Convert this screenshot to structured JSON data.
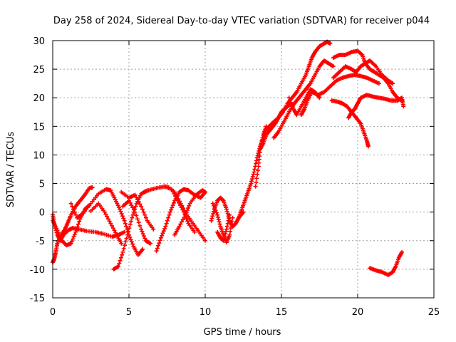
{
  "chart_data": {
    "type": "scatter",
    "title": "Day 258 of 2024, Sidereal Day-to-day VTEC variation (SDTVAR) for receiver p044",
    "xlabel": "GPS time / hours",
    "ylabel": "SDTVAR / TECUs",
    "xlim": [
      0,
      25
    ],
    "ylim": [
      -15,
      30
    ],
    "x_ticks": [
      "0",
      "5",
      "10",
      "15",
      "20",
      "25"
    ],
    "y_ticks": [
      "-15",
      "-10",
      "-5",
      "0",
      "5",
      "10",
      "15",
      "20",
      "25",
      "30"
    ],
    "grid": true,
    "marker": "plus",
    "color": "#ff0000",
    "series": [
      {
        "name": "s1",
        "points": [
          [
            0.0,
            -1.5
          ],
          [
            0.3,
            -3.2
          ],
          [
            0.6,
            -5.0
          ],
          [
            0.9,
            -5.8
          ],
          [
            1.2,
            -5.5
          ],
          [
            1.5,
            -3.5
          ],
          [
            1.8,
            -1.2
          ],
          [
            2.1,
            0.5
          ],
          [
            2.4,
            1.2
          ]
        ]
      },
      {
        "name": "s2",
        "points": [
          [
            0.0,
            -8.8
          ],
          [
            0.1,
            -8.2
          ],
          [
            0.2,
            -7.0
          ],
          [
            0.3,
            -5.5
          ],
          [
            0.5,
            -4.2
          ],
          [
            0.8,
            -3.0
          ],
          [
            1.0,
            -1.8
          ],
          [
            1.2,
            -0.5
          ],
          [
            1.5,
            1.0
          ],
          [
            1.8,
            2.0
          ],
          [
            2.1,
            3.0
          ],
          [
            2.4,
            4.2
          ],
          [
            2.6,
            4.3
          ]
        ]
      },
      {
        "name": "s3",
        "points": [
          [
            0.0,
            -0.4
          ],
          [
            0.1,
            -2.0
          ],
          [
            0.3,
            -4.0
          ],
          [
            0.5,
            -5.0
          ],
          [
            0.7,
            -4.0
          ],
          [
            1.0,
            -3.2
          ],
          [
            1.3,
            -2.8
          ],
          [
            1.7,
            -3.0
          ],
          [
            2.2,
            -3.3
          ],
          [
            2.8,
            -3.5
          ],
          [
            3.3,
            -3.8
          ],
          [
            3.9,
            -4.3
          ],
          [
            4.3,
            -4.0
          ],
          [
            4.7,
            -3.5
          ]
        ]
      },
      {
        "name": "s4",
        "points": [
          [
            1.2,
            1.5
          ],
          [
            1.6,
            -1.0
          ],
          [
            2.0,
            -0.2
          ],
          [
            2.5,
            1.5
          ],
          [
            3.0,
            3.2
          ],
          [
            3.5,
            4.0
          ],
          [
            3.8,
            3.8
          ],
          [
            4.1,
            2.2
          ],
          [
            4.4,
            0.5
          ],
          [
            4.7,
            -1.5
          ],
          [
            5.0,
            -4.0
          ],
          [
            5.3,
            -6.0
          ],
          [
            5.6,
            -7.5
          ],
          [
            5.9,
            -6.5
          ]
        ]
      },
      {
        "name": "s5",
        "points": [
          [
            2.5,
            0.2
          ],
          [
            3.0,
            1.5
          ],
          [
            3.4,
            0.0
          ],
          [
            3.8,
            -2.0
          ],
          [
            4.2,
            -4.0
          ],
          [
            4.5,
            -5.5
          ]
        ]
      },
      {
        "name": "s6",
        "points": [
          [
            4.0,
            -10.0
          ],
          [
            4.3,
            -9.5
          ],
          [
            4.6,
            -7.0
          ],
          [
            4.9,
            -4.0
          ],
          [
            5.2,
            -1.0
          ],
          [
            5.5,
            1.5
          ],
          [
            5.8,
            3.2
          ],
          [
            6.2,
            3.8
          ]
        ]
      },
      {
        "name": "s7",
        "points": [
          [
            4.6,
            1.0
          ],
          [
            5.0,
            2.0
          ],
          [
            5.4,
            0.0
          ],
          [
            5.8,
            -3.0
          ],
          [
            6.1,
            -5.0
          ],
          [
            6.4,
            -5.5
          ]
        ]
      },
      {
        "name": "s8",
        "points": [
          [
            4.5,
            3.5
          ],
          [
            5.0,
            2.5
          ],
          [
            5.4,
            3.0
          ],
          [
            5.8,
            1.0
          ],
          [
            6.2,
            -1.5
          ],
          [
            6.6,
            -3.0
          ]
        ]
      },
      {
        "name": "s9",
        "points": [
          [
            6.8,
            -6.8
          ],
          [
            7.1,
            -4.5
          ],
          [
            7.4,
            -2.5
          ],
          [
            7.7,
            0.0
          ],
          [
            8.0,
            2.0
          ],
          [
            8.3,
            3.5
          ],
          [
            8.6,
            4.0
          ],
          [
            8.9,
            3.8
          ],
          [
            9.3,
            3.0
          ],
          [
            9.7,
            2.5
          ],
          [
            10.0,
            3.5
          ]
        ]
      },
      {
        "name": "s10",
        "points": [
          [
            6.0,
            3.5
          ],
          [
            6.5,
            4.0
          ],
          [
            7.0,
            4.3
          ],
          [
            7.5,
            4.5
          ],
          [
            8.0,
            3.5
          ],
          [
            8.4,
            1.5
          ],
          [
            8.8,
            -0.5
          ],
          [
            9.2,
            -2.0
          ],
          [
            9.6,
            -3.5
          ],
          [
            10.0,
            -5.0
          ]
        ]
      },
      {
        "name": "s11",
        "points": [
          [
            7.3,
            4.5
          ],
          [
            7.8,
            4.0
          ],
          [
            8.2,
            2.0
          ],
          [
            8.6,
            0.0
          ],
          [
            8.9,
            -2.0
          ],
          [
            9.3,
            -3.5
          ]
        ]
      },
      {
        "name": "s12",
        "points": [
          [
            8.0,
            -4.0
          ],
          [
            8.3,
            -2.5
          ],
          [
            8.7,
            -0.5
          ],
          [
            9.0,
            1.5
          ],
          [
            9.4,
            3.0
          ],
          [
            9.8,
            3.8
          ],
          [
            10.0,
            3.5
          ]
        ]
      },
      {
        "name": "s13",
        "points": [
          [
            10.4,
            -1.5
          ],
          [
            10.6,
            0.5
          ],
          [
            10.8,
            2.0
          ],
          [
            11.0,
            2.5
          ],
          [
            11.2,
            2.0
          ],
          [
            11.4,
            0.5
          ],
          [
            11.6,
            -1.5
          ],
          [
            11.8,
            -2.5
          ],
          [
            12.0,
            -2.0
          ],
          [
            12.2,
            -1.0
          ],
          [
            12.5,
            0.0
          ]
        ]
      },
      {
        "name": "s14",
        "points": [
          [
            10.5,
            1.5
          ],
          [
            10.8,
            -0.5
          ],
          [
            11.0,
            -2.5
          ],
          [
            11.2,
            -4.0
          ],
          [
            11.4,
            -5.3
          ],
          [
            11.6,
            -4.0
          ],
          [
            11.8,
            -1.0
          ]
        ]
      },
      {
        "name": "s15",
        "points": [
          [
            10.8,
            -3.5
          ],
          [
            11.0,
            -4.5
          ],
          [
            11.2,
            -5.0
          ],
          [
            11.4,
            -3.0
          ],
          [
            11.6,
            -0.5
          ]
        ]
      },
      {
        "name": "s16",
        "points": [
          [
            12.2,
            -1.0
          ],
          [
            12.4,
            0.5
          ],
          [
            12.6,
            2.0
          ],
          [
            12.8,
            3.5
          ],
          [
            13.0,
            5.0
          ],
          [
            13.2,
            7.0
          ],
          [
            13.4,
            9.5
          ],
          [
            13.6,
            11.5
          ],
          [
            13.8,
            13.0
          ],
          [
            14.0,
            14.5
          ],
          [
            14.2,
            15.0
          ],
          [
            14.5,
            15.8
          ],
          [
            14.8,
            16.5
          ],
          [
            15.0,
            17.5
          ],
          [
            15.2,
            18.0
          ],
          [
            15.4,
            18.5
          ],
          [
            15.6,
            19.0
          ]
        ]
      },
      {
        "name": "s17",
        "points": [
          [
            13.3,
            4.5
          ],
          [
            13.5,
            8.0
          ],
          [
            13.6,
            11.0
          ],
          [
            13.8,
            13.5
          ],
          [
            14.0,
            15.0
          ]
        ]
      },
      {
        "name": "s18",
        "points": [
          [
            13.6,
            11.0
          ],
          [
            13.8,
            12.0
          ],
          [
            14.0,
            13.5
          ],
          [
            14.3,
            14.5
          ],
          [
            14.6,
            15.5
          ],
          [
            14.8,
            16.5
          ],
          [
            15.1,
            17.5
          ],
          [
            15.4,
            19.0
          ],
          [
            15.7,
            20.0
          ],
          [
            16.0,
            21.0
          ],
          [
            16.3,
            22.5
          ],
          [
            16.6,
            24.0
          ],
          [
            16.8,
            25.5
          ],
          [
            17.0,
            27.0
          ],
          [
            17.2,
            28.0
          ],
          [
            17.5,
            29.0
          ],
          [
            17.8,
            29.5
          ],
          [
            18.0,
            29.8
          ],
          [
            18.2,
            29.5
          ]
        ]
      },
      {
        "name": "s19",
        "points": [
          [
            14.5,
            13.0
          ],
          [
            14.8,
            14.0
          ],
          [
            15.1,
            15.5
          ],
          [
            15.4,
            17.0
          ],
          [
            15.7,
            18.5
          ],
          [
            16.0,
            19.5
          ],
          [
            16.3,
            20.5
          ],
          [
            16.6,
            21.5
          ],
          [
            16.9,
            22.5
          ],
          [
            17.2,
            24.0
          ],
          [
            17.5,
            25.5
          ],
          [
            17.8,
            26.5
          ],
          [
            18.1,
            26.0
          ],
          [
            18.4,
            25.5
          ]
        ]
      },
      {
        "name": "s20",
        "points": [
          [
            15.5,
            20.0
          ],
          [
            15.8,
            18.0
          ],
          [
            16.0,
            17.0
          ],
          [
            16.3,
            18.5
          ],
          [
            16.6,
            20.0
          ],
          [
            16.9,
            21.5
          ],
          [
            17.2,
            21.0
          ],
          [
            17.5,
            20.0
          ]
        ]
      },
      {
        "name": "s21",
        "points": [
          [
            16.3,
            17.0
          ],
          [
            16.5,
            18.0
          ],
          [
            16.7,
            19.5
          ],
          [
            17.0,
            21.0
          ],
          [
            17.4,
            20.5
          ],
          [
            17.8,
            21.0
          ],
          [
            18.2,
            22.0
          ],
          [
            18.6,
            23.0
          ],
          [
            19.0,
            23.5
          ],
          [
            19.4,
            23.8
          ],
          [
            19.8,
            24.0
          ],
          [
            20.2,
            23.8
          ],
          [
            20.6,
            23.5
          ],
          [
            21.0,
            23.0
          ],
          [
            21.4,
            22.5
          ]
        ]
      },
      {
        "name": "s22",
        "points": [
          [
            18.4,
            27.0
          ],
          [
            18.8,
            27.5
          ],
          [
            19.2,
            27.5
          ],
          [
            19.6,
            28.0
          ],
          [
            20.0,
            28.2
          ],
          [
            20.3,
            27.5
          ],
          [
            20.5,
            26.0
          ],
          [
            20.8,
            25.0
          ],
          [
            21.1,
            24.5
          ],
          [
            21.4,
            24.0
          ],
          [
            21.7,
            23.5
          ],
          [
            22.0,
            22.5
          ],
          [
            22.3,
            21.0
          ],
          [
            22.6,
            20.0
          ],
          [
            22.9,
            19.5
          ]
        ]
      },
      {
        "name": "s23",
        "points": [
          [
            18.4,
            23.5
          ],
          [
            18.8,
            24.5
          ],
          [
            19.2,
            25.5
          ],
          [
            19.6,
            25.0
          ],
          [
            19.9,
            24.5
          ],
          [
            20.2,
            25.5
          ],
          [
            20.5,
            26.0
          ],
          [
            20.8,
            26.5
          ],
          [
            21.2,
            25.5
          ],
          [
            21.6,
            24.0
          ],
          [
            22.0,
            23.0
          ],
          [
            22.3,
            22.5
          ]
        ]
      },
      {
        "name": "s24",
        "points": [
          [
            18.3,
            19.5
          ],
          [
            18.7,
            19.3
          ],
          [
            19.0,
            19.0
          ],
          [
            19.3,
            18.5
          ],
          [
            19.6,
            17.5
          ],
          [
            19.9,
            16.5
          ],
          [
            20.2,
            15.5
          ],
          [
            20.4,
            14.0
          ],
          [
            20.6,
            12.5
          ],
          [
            20.7,
            11.5
          ]
        ]
      },
      {
        "name": "s25",
        "points": [
          [
            19.4,
            16.5
          ],
          [
            19.6,
            17.5
          ],
          [
            19.8,
            18.0
          ],
          [
            20.0,
            19.0
          ],
          [
            20.2,
            20.0
          ],
          [
            20.6,
            20.5
          ],
          [
            21.0,
            20.2
          ],
          [
            21.4,
            20.0
          ],
          [
            21.8,
            19.8
          ],
          [
            22.2,
            19.5
          ],
          [
            22.6,
            19.5
          ],
          [
            22.9,
            20.0
          ],
          [
            23.0,
            18.5
          ]
        ]
      },
      {
        "name": "s26",
        "points": [
          [
            20.8,
            -9.8
          ],
          [
            21.2,
            -10.2
          ],
          [
            21.6,
            -10.5
          ],
          [
            22.0,
            -11.0
          ],
          [
            22.3,
            -10.5
          ],
          [
            22.5,
            -9.5
          ],
          [
            22.7,
            -8.0
          ],
          [
            22.9,
            -7.0
          ]
        ]
      }
    ]
  }
}
